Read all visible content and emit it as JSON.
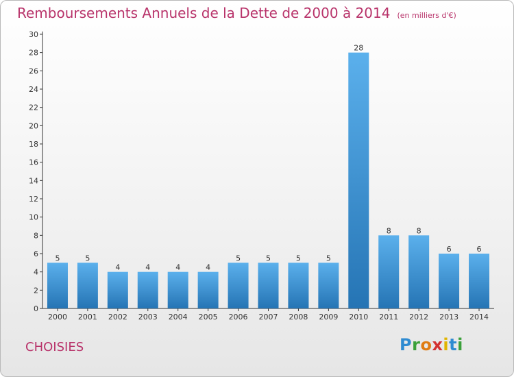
{
  "header": {
    "title": "Remboursements Annuels de la Dette de 2000 à 2014",
    "subtitle": "(en milliers d'€)"
  },
  "footer": {
    "commune": "CHOISIES",
    "brand": "Proxiti"
  },
  "colors": {
    "title": "#b8336a",
    "bar_top": "#5bb0ec",
    "bar_bottom": "#2574b4"
  },
  "chart_data": {
    "type": "bar",
    "title": "Remboursements Annuels de la Dette de 2000 à 2014",
    "xlabel": "",
    "ylabel": "",
    "categories": [
      "2000",
      "2001",
      "2002",
      "2003",
      "2004",
      "2005",
      "2006",
      "2007",
      "2008",
      "2009",
      "2010",
      "2011",
      "2012",
      "2013",
      "2014"
    ],
    "values": [
      5,
      5,
      4,
      4,
      4,
      4,
      5,
      5,
      5,
      5,
      28,
      8,
      8,
      6,
      6
    ],
    "ylim": [
      0,
      30
    ],
    "yticks": [
      0,
      2,
      4,
      6,
      8,
      10,
      12,
      14,
      16,
      18,
      20,
      22,
      24,
      26,
      28,
      30
    ],
    "grid": false,
    "data_labels": true
  }
}
